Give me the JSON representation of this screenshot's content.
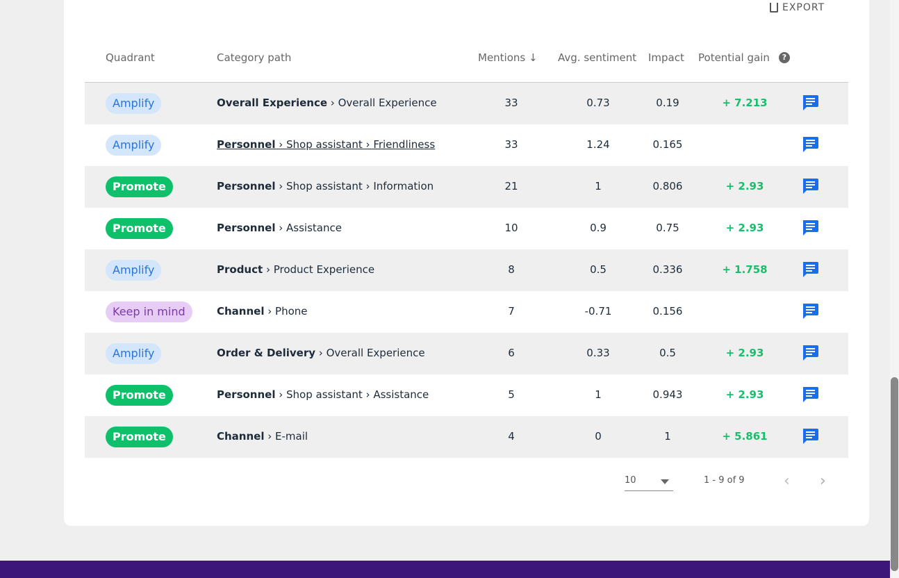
{
  "export_label": "EXPORT",
  "columns": {
    "quadrant": "Quadrant",
    "category": "Category path",
    "mentions": "Mentions ↓",
    "sentiment": "Avg. sentiment",
    "impact": "Impact",
    "gain": "Potential gain"
  },
  "rows": [
    {
      "quadrant": "Amplify",
      "type": "amplify",
      "main": "Overall Experience",
      "rest": " › Overall Experience",
      "mentions": "33",
      "sentiment": "0.73",
      "impact": "0.19",
      "gain": "+ 7.213"
    },
    {
      "quadrant": "Amplify",
      "type": "amplify",
      "main": "Personnel",
      "rest": " › Shop assistant › Friendliness",
      "mentions": "33",
      "sentiment": "1.24",
      "impact": "0.165",
      "gain": "",
      "hover": true
    },
    {
      "quadrant": "Promote",
      "type": "promote",
      "main": "Personnel",
      "rest": " › Shop assistant › Information",
      "mentions": "21",
      "sentiment": "1",
      "impact": "0.806",
      "gain": "+ 2.93"
    },
    {
      "quadrant": "Promote",
      "type": "promote",
      "main": "Personnel",
      "rest": " › Assistance",
      "mentions": "10",
      "sentiment": "0.9",
      "impact": "0.75",
      "gain": "+ 2.93"
    },
    {
      "quadrant": "Amplify",
      "type": "amplify",
      "main": "Product",
      "rest": " › Product Experience",
      "mentions": "8",
      "sentiment": "0.5",
      "impact": "0.336",
      "gain": "+ 1.758"
    },
    {
      "quadrant": "Keep in mind",
      "type": "keep",
      "main": "Channel",
      "rest": " › Phone",
      "mentions": "7",
      "sentiment": "-0.71",
      "impact": "0.156",
      "gain": ""
    },
    {
      "quadrant": "Amplify",
      "type": "amplify",
      "main": "Order & Delivery",
      "rest": " › Overall Experience",
      "mentions": "6",
      "sentiment": "0.33",
      "impact": "0.5",
      "gain": "+ 2.93"
    },
    {
      "quadrant": "Promote",
      "type": "promote",
      "main": "Personnel",
      "rest": " › Shop assistant › Assistance",
      "mentions": "5",
      "sentiment": "1",
      "impact": "0.943",
      "gain": "+ 2.93"
    },
    {
      "quadrant": "Promote",
      "type": "promote",
      "main": "Channel",
      "rest": " › E-mail",
      "mentions": "4",
      "sentiment": "0",
      "impact": "1",
      "gain": "+ 5.861"
    }
  ],
  "pagination": {
    "page_size": "10",
    "range": "1 - 9 of 9"
  },
  "colors": {
    "amplify": "#2b74d9",
    "promote": "#0fc06b",
    "keep": "#7a3aa8",
    "gain": "#16c06b",
    "comment_icon": "#1a6cf0",
    "footer": "#3c1679"
  }
}
